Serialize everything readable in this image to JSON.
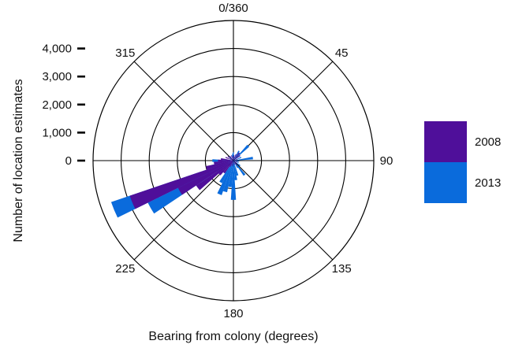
{
  "chart_data": {
    "type": "polar-bar",
    "xlabel": "Bearing from colony (degrees)",
    "ylabel": "Number of location estimates",
    "r_ticks": [
      {
        "value": 0,
        "label": "0"
      },
      {
        "value": 1000,
        "label": "1,000"
      },
      {
        "value": 2000,
        "label": "2,000"
      },
      {
        "value": 3000,
        "label": "3,000"
      },
      {
        "value": 4000,
        "label": "4,000"
      }
    ],
    "rlim": [
      0,
      5000
    ],
    "angle_labels": [
      {
        "deg": 0,
        "label": "0/360"
      },
      {
        "deg": 45,
        "label": "45"
      },
      {
        "deg": 90,
        "label": "90"
      },
      {
        "deg": 135,
        "label": "135"
      },
      {
        "deg": 180,
        "label": "180"
      },
      {
        "deg": 225,
        "label": "225"
      },
      {
        "deg": 270,
        "label": ""
      },
      {
        "deg": 315,
        "label": "315"
      }
    ],
    "bin_width_deg": 7.5,
    "grid": true,
    "legend_position": "right",
    "series": [
      {
        "name": "2013",
        "color": "#0a6bdc",
        "bins": [
          {
            "bearing": 247.5,
            "value": 4600
          },
          {
            "bearing": 240,
            "value": 3400
          },
          {
            "bearing": 232.5,
            "value": 700
          },
          {
            "bearing": 225,
            "value": 200
          },
          {
            "bearing": 210,
            "value": 900
          },
          {
            "bearing": 202.5,
            "value": 1300
          },
          {
            "bearing": 195,
            "value": 1150
          },
          {
            "bearing": 187.5,
            "value": 950
          },
          {
            "bearing": 180,
            "value": 1400
          },
          {
            "bearing": 172.5,
            "value": 700
          },
          {
            "bearing": 165,
            "value": 550
          },
          {
            "bearing": 150,
            "value": 300
          },
          {
            "bearing": 142.5,
            "value": 650
          },
          {
            "bearing": 127.5,
            "value": 300
          },
          {
            "bearing": 112.5,
            "value": 200
          },
          {
            "bearing": 97.5,
            "value": 200
          },
          {
            "bearing": 82.5,
            "value": 700
          },
          {
            "bearing": 67.5,
            "value": 300
          },
          {
            "bearing": 45,
            "value": 750
          },
          {
            "bearing": 30,
            "value": 400
          },
          {
            "bearing": 15,
            "value": 150
          },
          {
            "bearing": 0,
            "value": 300
          },
          {
            "bearing": 352.5,
            "value": 250
          },
          {
            "bearing": 345,
            "value": 200
          },
          {
            "bearing": 315,
            "value": 200
          },
          {
            "bearing": 300,
            "value": 150
          },
          {
            "bearing": 277.5,
            "value": 350
          },
          {
            "bearing": 270,
            "value": 750
          },
          {
            "bearing": 262.5,
            "value": 650
          },
          {
            "bearing": 255,
            "value": 800
          }
        ]
      },
      {
        "name": "2008",
        "color": "#4f0f9a",
        "bins": [
          {
            "bearing": 247.5,
            "value": 3900
          },
          {
            "bearing": 240,
            "value": 2200
          },
          {
            "bearing": 232.5,
            "value": 1600
          },
          {
            "bearing": 225,
            "value": 700
          },
          {
            "bearing": 217.5,
            "value": 550
          },
          {
            "bearing": 210,
            "value": 250
          },
          {
            "bearing": 195,
            "value": 200
          },
          {
            "bearing": 180,
            "value": 150
          },
          {
            "bearing": 157.5,
            "value": 150
          },
          {
            "bearing": 142.5,
            "value": 200
          },
          {
            "bearing": 127.5,
            "value": 150
          },
          {
            "bearing": 105,
            "value": 150
          },
          {
            "bearing": 75,
            "value": 150
          },
          {
            "bearing": 52.5,
            "value": 300
          },
          {
            "bearing": 37.5,
            "value": 350
          },
          {
            "bearing": 22.5,
            "value": 250
          },
          {
            "bearing": 7.5,
            "value": 200
          },
          {
            "bearing": 352.5,
            "value": 150
          },
          {
            "bearing": 337.5,
            "value": 200
          },
          {
            "bearing": 322.5,
            "value": 200
          },
          {
            "bearing": 307.5,
            "value": 250
          },
          {
            "bearing": 292.5,
            "value": 300
          },
          {
            "bearing": 277.5,
            "value": 450
          },
          {
            "bearing": 270,
            "value": 550
          },
          {
            "bearing": 262.5,
            "value": 700
          },
          {
            "bearing": 255,
            "value": 1000
          }
        ]
      }
    ],
    "legend": [
      {
        "label": "2008",
        "color": "#4f0f9a"
      },
      {
        "label": "2013",
        "color": "#0a6bdc"
      }
    ]
  }
}
